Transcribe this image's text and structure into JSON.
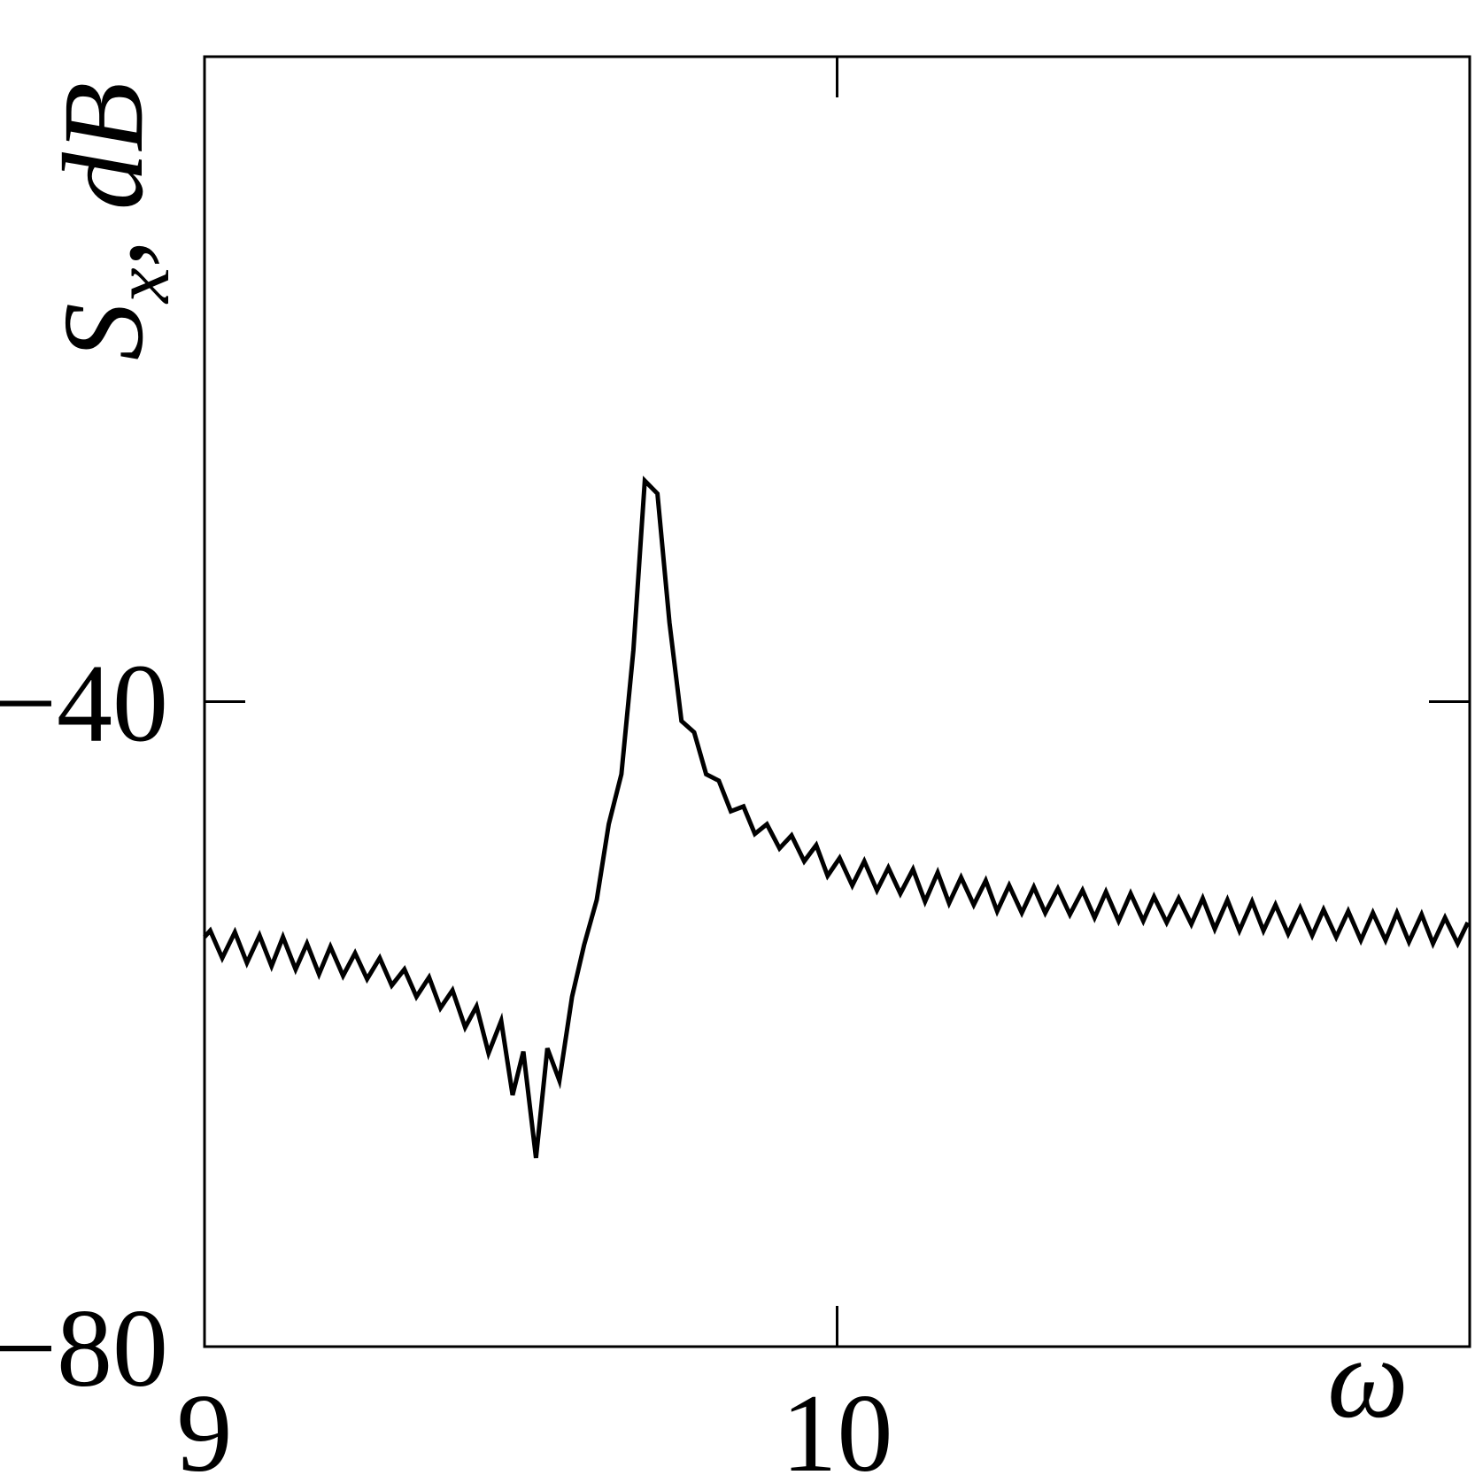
{
  "chart_data": {
    "type": "line",
    "xlabel": "ω",
    "ylabel": {
      "base": "S",
      "subscript": "x",
      "suffix": ", dB"
    },
    "xlim": [
      9,
      11
    ],
    "ylim": [
      -80,
      0
    ],
    "xticks": [
      9,
      10
    ],
    "yticks": [
      {
        "value": -80,
        "label": "−80"
      },
      {
        "value": -40,
        "label": "−40"
      }
    ],
    "grid": false,
    "series": [
      {
        "color": "#000000",
        "x": [
          9.0,
          9.009,
          9.028,
          9.048,
          9.067,
          9.087,
          9.106,
          9.124,
          9.144,
          9.162,
          9.181,
          9.199,
          9.219,
          9.238,
          9.257,
          9.277,
          9.296,
          9.316,
          9.335,
          9.355,
          9.373,
          9.392,
          9.412,
          9.43,
          9.449,
          9.469,
          9.487,
          9.504,
          9.524,
          9.542,
          9.561,
          9.581,
          9.6,
          9.62,
          9.639,
          9.659,
          9.678,
          9.696,
          9.716,
          9.735,
          9.754,
          9.774,
          9.793,
          9.813,
          9.832,
          9.852,
          9.87,
          9.889,
          9.909,
          9.928,
          9.948,
          9.967,
          9.985,
          10.004,
          10.024,
          10.043,
          10.063,
          10.081,
          10.1,
          10.12,
          10.139,
          10.159,
          10.177,
          10.196,
          10.216,
          10.235,
          10.253,
          10.272,
          10.292,
          10.311,
          10.329,
          10.349,
          10.368,
          10.388,
          10.407,
          10.425,
          10.445,
          10.464,
          10.484,
          10.501,
          10.521,
          10.54,
          10.56,
          10.578,
          10.597,
          10.617,
          10.636,
          10.656,
          10.674,
          10.693,
          10.713,
          10.732,
          10.751,
          10.769,
          10.789,
          10.808,
          10.828,
          10.847,
          10.867,
          10.885,
          10.904,
          10.924,
          10.942,
          10.961,
          10.981,
          10.997
        ],
        "values": [
          -54.6,
          -54.2,
          -55.9,
          -54.3,
          -56.2,
          -54.5,
          -56.4,
          -54.6,
          -56.6,
          -55.0,
          -56.9,
          -55.2,
          -57.0,
          -55.6,
          -57.2,
          -55.9,
          -57.6,
          -56.6,
          -58.3,
          -57.1,
          -59.0,
          -57.9,
          -60.2,
          -58.9,
          -61.8,
          -59.8,
          -64.4,
          -61.7,
          -68.3,
          -61.5,
          -63.5,
          -58.3,
          -55.1,
          -52.3,
          -47.6,
          -44.5,
          -36.8,
          -26.3,
          -27.1,
          -35.1,
          -41.2,
          -41.9,
          -44.5,
          -44.9,
          -46.8,
          -46.5,
          -48.2,
          -47.6,
          -49.1,
          -48.3,
          -49.9,
          -48.9,
          -50.8,
          -49.7,
          -51.4,
          -49.9,
          -51.7,
          -50.3,
          -51.9,
          -50.4,
          -52.4,
          -50.6,
          -52.5,
          -50.9,
          -52.6,
          -51.1,
          -53.0,
          -51.4,
          -53.1,
          -51.5,
          -53.1,
          -51.6,
          -53.2,
          -51.7,
          -53.4,
          -51.8,
          -53.6,
          -51.9,
          -53.6,
          -52.1,
          -53.7,
          -52.2,
          -53.8,
          -52.2,
          -54.1,
          -52.3,
          -54.2,
          -52.4,
          -54.2,
          -52.6,
          -54.4,
          -52.8,
          -54.5,
          -52.9,
          -54.6,
          -53.0,
          -54.8,
          -53.1,
          -54.8,
          -53.1,
          -54.9,
          -53.2,
          -55.0,
          -53.4,
          -55.0,
          -53.7
        ]
      }
    ]
  }
}
